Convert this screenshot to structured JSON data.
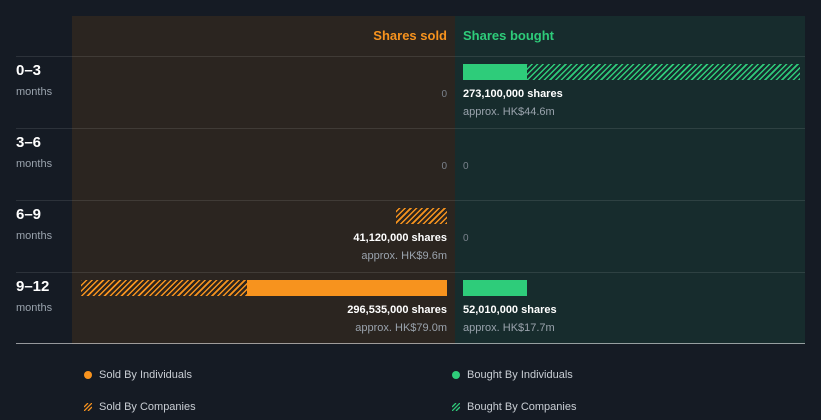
{
  "header": {
    "sold_label": "Shares sold",
    "bought_label": "Shares bought"
  },
  "colors": {
    "sold": "#f7931e",
    "bought": "#2ecc7a",
    "sold_panel": "#2b2520",
    "bought_panel": "#172c2d",
    "background": "#151b24"
  },
  "legend": {
    "sold_individuals": "Sold By Individuals",
    "sold_companies": "Sold By Companies",
    "bought_individuals": "Bought By Individuals",
    "bought_companies": "Bought By Companies"
  },
  "chart_data": {
    "type": "bar",
    "title": "",
    "categories": [
      "0–3",
      "3–6",
      "6–9",
      "9–12"
    ],
    "category_unit": "months",
    "series": [
      {
        "name": "Sold By Individuals",
        "values": [
          0,
          0,
          0,
          162000000
        ]
      },
      {
        "name": "Sold By Companies",
        "values": [
          0,
          0,
          41120000,
          134535000
        ]
      },
      {
        "name": "Bought By Individuals",
        "values": [
          52000000,
          0,
          0,
          52010000
        ]
      },
      {
        "name": "Bought By Companies",
        "values": [
          221100000,
          0,
          0,
          0
        ]
      }
    ],
    "rows": [
      {
        "period": "0–3",
        "unit": "months",
        "sold": {
          "shares": "0",
          "approx": ""
        },
        "bought": {
          "shares": "273,100,000 shares",
          "approx": "approx. HK$44.6m"
        }
      },
      {
        "period": "3–6",
        "unit": "months",
        "sold": {
          "shares": "0",
          "approx": ""
        },
        "bought": {
          "shares": "0",
          "approx": ""
        }
      },
      {
        "period": "6–9",
        "unit": "months",
        "sold": {
          "shares": "41,120,000 shares",
          "approx": "approx. HK$9.6m"
        },
        "bought": {
          "shares": "0",
          "approx": ""
        }
      },
      {
        "period": "9–12",
        "unit": "months",
        "sold": {
          "shares": "296,535,000 shares",
          "approx": "approx. HK$79.0m"
        },
        "bought": {
          "shares": "52,010,000 shares",
          "approx": "approx. HK$17.7m"
        }
      }
    ],
    "max_value": 296535000,
    "legend_position": "bottom"
  }
}
